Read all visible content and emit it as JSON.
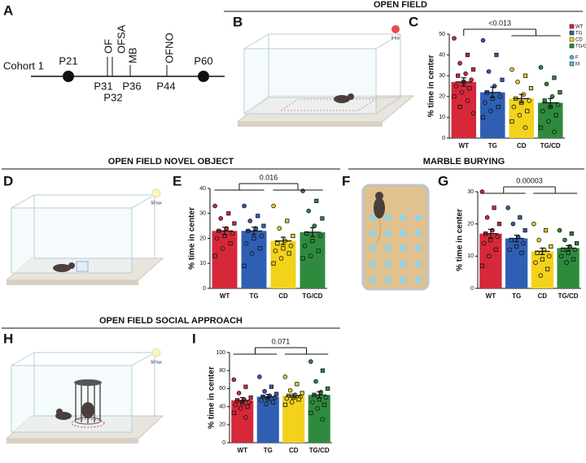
{
  "panel_letters": [
    "A",
    "B",
    "C",
    "D",
    "E",
    "F",
    "G",
    "H",
    "I"
  ],
  "section_titles": [
    "OPEN FIELD",
    "OPEN FIELD NOVEL OBJECT",
    "MARBLE BURYING",
    "OPEN FIELD SOCIAL APPROACH"
  ],
  "timeline": {
    "cohort": "Cohort 1",
    "endpoints": [
      "P21",
      "P60"
    ],
    "days": [
      "P31",
      "P32",
      "P36",
      "P44"
    ],
    "tests": [
      "OF",
      "OFSA",
      "MB",
      "OFNO"
    ]
  },
  "lux_labels": [
    "9 lux",
    "50 lux",
    "50 lux"
  ],
  "chart_data": [
    {
      "type": "bar",
      "annotation": "<0.013",
      "ylabel": "% time in center",
      "categories": [
        "WT",
        "TG",
        "CD",
        "TG/CD"
      ],
      "colors": [
        "#d62839",
        "#2f5fb3",
        "#f2d21b",
        "#2e8b3e"
      ],
      "values": [
        27,
        22,
        19,
        17
      ],
      "errors": [
        2,
        2.5,
        2,
        2
      ],
      "points": [
        [
          48,
          40,
          36,
          33,
          31,
          30,
          28,
          27,
          25,
          24,
          22,
          20,
          18,
          15,
          12
        ],
        [
          47,
          40,
          32,
          28,
          25,
          22,
          20,
          19,
          17,
          15,
          13,
          10
        ],
        [
          33,
          30,
          27,
          24,
          21,
          19,
          18,
          17,
          15,
          13,
          11,
          8,
          5
        ],
        [
          34,
          29,
          26,
          22,
          20,
          18,
          16,
          15,
          13,
          11,
          8,
          5,
          3
        ]
      ],
      "ylim": [
        0,
        50
      ],
      "yticks": [
        0,
        10,
        20,
        30,
        40,
        50
      ],
      "marker_legend": [
        "F",
        "M"
      ]
    },
    {
      "type": "bar",
      "annotation": "0.016",
      "ylabel": "% time in center",
      "categories": [
        "WT",
        "TG",
        "CD",
        "TG/CD"
      ],
      "colors": [
        "#d62839",
        "#2f5fb3",
        "#f2d21b",
        "#2e8b3e"
      ],
      "values": [
        23,
        23,
        19,
        22.5
      ],
      "errors": [
        1.5,
        1.5,
        1.5,
        1.8
      ],
      "points": [
        [
          33,
          30,
          28,
          26,
          24,
          23,
          22,
          21,
          20,
          18,
          16,
          13
        ],
        [
          33,
          29,
          27,
          25,
          24,
          23,
          21,
          20,
          18,
          16,
          14,
          9
        ],
        [
          33,
          27,
          24,
          21,
          19,
          18,
          17,
          16,
          15,
          14,
          12,
          10
        ],
        [
          39,
          35,
          31,
          28,
          25,
          22,
          21,
          19,
          17,
          15,
          13,
          12
        ]
      ],
      "ylim": [
        0,
        40
      ],
      "yticks": [
        0,
        10,
        20,
        30,
        40
      ]
    },
    {
      "type": "bar",
      "annotation": "0.00003",
      "ylabel": "% time in center",
      "categories": [
        "WT",
        "TG",
        "CD",
        "TG/CD"
      ],
      "colors": [
        "#d62839",
        "#2f5fb3",
        "#f2d21b",
        "#2e8b3e"
      ],
      "values": [
        17,
        15.5,
        11.5,
        12.5
      ],
      "errors": [
        1.3,
        1,
        1,
        0.8
      ],
      "points": [
        [
          30,
          25,
          22,
          20,
          18,
          17,
          16,
          15,
          14,
          12,
          10,
          7
        ],
        [
          25,
          22,
          20,
          18,
          16,
          15,
          14,
          13,
          12,
          11
        ],
        [
          20,
          18,
          15,
          13,
          12,
          11,
          10,
          9,
          8,
          6,
          4
        ],
        [
          18,
          17,
          15,
          14,
          13,
          12,
          12,
          11,
          10,
          9,
          8
        ]
      ],
      "ylim": [
        0,
        30
      ],
      "yticks": [
        0,
        10,
        20,
        30
      ]
    },
    {
      "type": "bar",
      "annotation": "0.071",
      "ylabel": "% time in center",
      "categories": [
        "WT",
        "TG",
        "CD",
        "TG/CD"
      ],
      "colors": [
        "#d62839",
        "#2f5fb3",
        "#f2d21b",
        "#2e8b3e"
      ],
      "values": [
        47,
        51,
        52,
        53
      ],
      "errors": [
        3,
        2.5,
        2,
        3.5
      ],
      "points": [
        [
          70,
          62,
          55,
          50,
          48,
          47,
          45,
          44,
          42,
          40,
          38,
          33,
          28
        ],
        [
          73,
          62,
          57,
          54,
          52,
          51,
          50,
          48,
          47,
          45,
          43
        ],
        [
          73,
          65,
          58,
          55,
          53,
          52,
          51,
          50,
          49,
          48,
          45,
          42
        ],
        [
          90,
          80,
          68,
          60,
          56,
          53,
          50,
          48,
          45,
          42,
          38,
          33,
          26
        ]
      ],
      "ylim": [
        0,
        100
      ],
      "yticks": [
        0,
        20,
        40,
        60,
        80,
        100
      ]
    }
  ]
}
